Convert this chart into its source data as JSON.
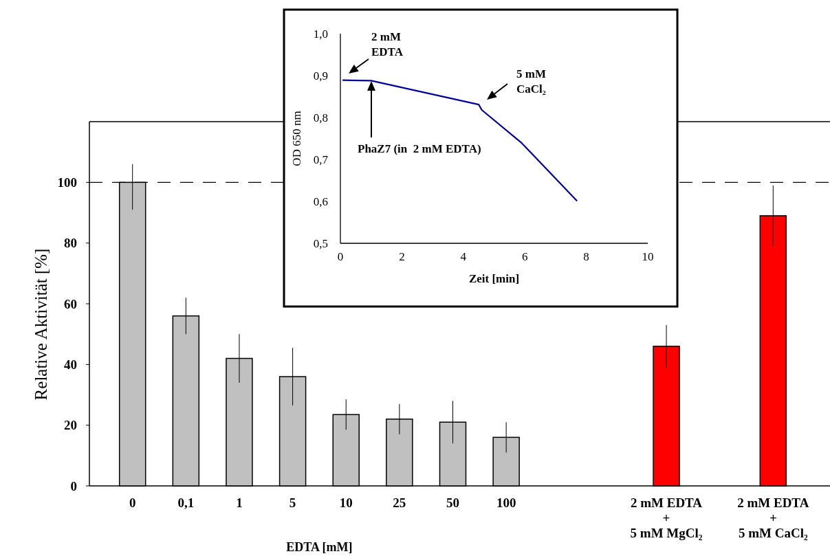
{
  "chart_data": [
    {
      "type": "bar",
      "xlabel": "EDTA [mM]",
      "ylabel": "Relative Aktivität [%]",
      "categories": [
        "0",
        "0,1",
        "1",
        "5",
        "10",
        "25",
        "50",
        "100",
        null,
        null,
        "2 mM EDTA\n+\n5 mM MgCl₂",
        null,
        "2 mM EDTA\n+\n5 mM CaCl₂"
      ],
      "values": [
        100,
        56,
        42,
        36,
        23.5,
        22,
        21,
        16,
        null,
        null,
        46,
        null,
        89
      ],
      "colors": [
        "#c0c0c0",
        "#c0c0c0",
        "#c0c0c0",
        "#c0c0c0",
        "#c0c0c0",
        "#c0c0c0",
        "#c0c0c0",
        "#c0c0c0",
        null,
        null,
        "#ff0000",
        null,
        "#ff0000"
      ],
      "errors": [
        [
          91,
          106
        ],
        6,
        8,
        9.5,
        5,
        5,
        7,
        5,
        null,
        null,
        7,
        null,
        10
      ],
      "ylim": [
        0,
        120
      ],
      "yticks": [
        0,
        20,
        40,
        60,
        80,
        100
      ],
      "ref_lines": [
        {
          "axis": "y",
          "value": 100,
          "line_style": "dashed",
          "color": "#000000"
        }
      ]
    },
    {
      "type": "line",
      "xlabel": "Zeit [min]",
      "ylabel": "OD 650 nm",
      "x": [
        0.07,
        1.0,
        4.5,
        4.6,
        5.9,
        7.7
      ],
      "series": [
        {
          "color": "#000099",
          "values": [
            0.889,
            0.888,
            0.831,
            0.818,
            0.739,
            0.601
          ]
        }
      ],
      "xlim": [
        0,
        10
      ],
      "xticks": [
        0,
        2,
        4,
        6,
        8,
        10
      ],
      "ylim": [
        0.5,
        1.0
      ],
      "yticks": [
        {
          "value": 0.5,
          "label": "0,5"
        },
        {
          "value": 0.6,
          "label": "0,6"
        },
        {
          "value": 0.7,
          "label": "0,7"
        },
        {
          "value": 0.8,
          "label": "0,8"
        },
        {
          "value": 0.9,
          "label": "0,9"
        },
        {
          "value": 1.0,
          "label": "1,0"
        }
      ],
      "annotations": [
        "2 mM\nEDTA",
        "PhaZ7 (in  2 mM EDTA)",
        "5 mM\nCaCl₂"
      ]
    }
  ]
}
